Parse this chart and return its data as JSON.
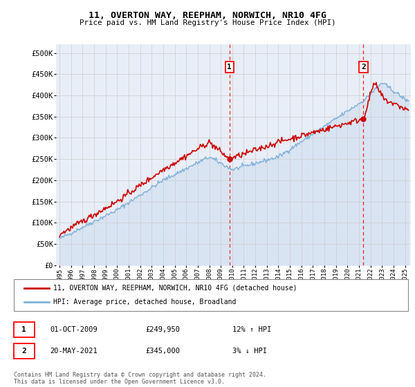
{
  "title": "11, OVERTON WAY, REEPHAM, NORWICH, NR10 4FG",
  "subtitle": "Price paid vs. HM Land Registry's House Price Index (HPI)",
  "ylabel_ticks": [
    "£0",
    "£50K",
    "£100K",
    "£150K",
    "£200K",
    "£250K",
    "£300K",
    "£350K",
    "£400K",
    "£450K",
    "£500K"
  ],
  "ytick_values": [
    0,
    50000,
    100000,
    150000,
    200000,
    250000,
    300000,
    350000,
    400000,
    450000,
    500000
  ],
  "ylim": [
    0,
    520000
  ],
  "xlim_start": 1994.7,
  "xlim_end": 2025.5,
  "background_color": "#e8eef8",
  "red_line_color": "#cc0000",
  "blue_line_color": "#7fb0d8",
  "blue_fill_color": "#ccdcf0",
  "marker1_x": 2009.75,
  "marker2_x": 2021.38,
  "marker1_y": 249950,
  "marker2_y": 345000,
  "legend_line1": "11, OVERTON WAY, REEPHAM, NORWICH, NR10 4FG (detached house)",
  "legend_line2": "HPI: Average price, detached house, Broadland",
  "annotation1_date": "01-OCT-2009",
  "annotation1_price": "£249,950",
  "annotation1_hpi": "12% ↑ HPI",
  "annotation2_date": "20-MAY-2021",
  "annotation2_price": "£345,000",
  "annotation2_hpi": "3% ↓ HPI",
  "footer": "Contains HM Land Registry data © Crown copyright and database right 2024.\nThis data is licensed under the Open Government Licence v3.0.",
  "xtick_years": [
    1995,
    1996,
    1997,
    1998,
    1999,
    2000,
    2001,
    2002,
    2003,
    2004,
    2005,
    2006,
    2007,
    2008,
    2009,
    2010,
    2011,
    2012,
    2013,
    2014,
    2015,
    2016,
    2017,
    2018,
    2019,
    2020,
    2021,
    2022,
    2023,
    2024,
    2025
  ]
}
